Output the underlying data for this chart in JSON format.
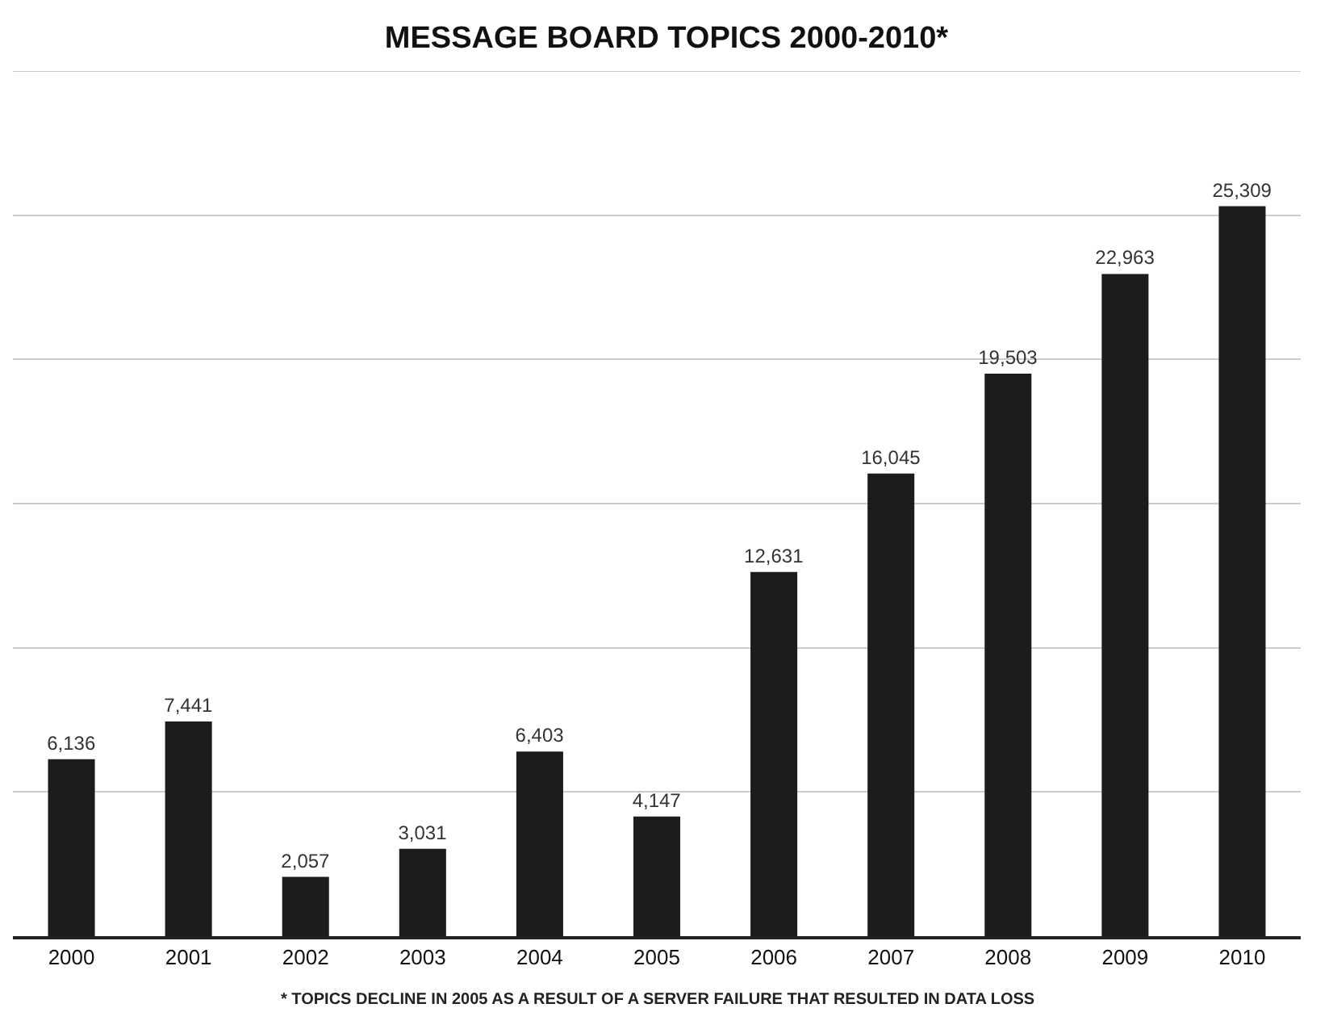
{
  "chart_data": {
    "type": "bar",
    "title": "MESSAGE BOARD TOPICS 2000-2010*",
    "categories": [
      "2000",
      "2001",
      "2002",
      "2003",
      "2004",
      "2005",
      "2006",
      "2007",
      "2008",
      "2009",
      "2010"
    ],
    "values": [
      6136,
      7441,
      2057,
      3031,
      6403,
      4147,
      12631,
      16045,
      19503,
      22963,
      25309
    ],
    "color": "#1c1c1c",
    "data_labels": true,
    "value_labels": [
      "6,136",
      "7,441",
      "2,057",
      "3,031",
      "6,403",
      "4,147",
      "12,631",
      "16,045",
      "19,503",
      "22,963",
      "25,309"
    ],
    "ylim": [
      0,
      30000
    ],
    "yticks": [
      {
        "value": 0,
        "label": null
      },
      {
        "value": 5000,
        "label": null
      },
      {
        "value": 10000,
        "label": null
      },
      {
        "value": 15000,
        "label": null
      },
      {
        "value": 20000,
        "label": null
      },
      {
        "value": 25000,
        "label": null
      }
    ],
    "grid": "y",
    "tick_labels": "x",
    "annotations": [
      "* TOPICS DECLINE IN 2005 AS A RESULT OF A SERVER FAILURE THAT RESULTED IN DATA LOSS"
    ]
  }
}
